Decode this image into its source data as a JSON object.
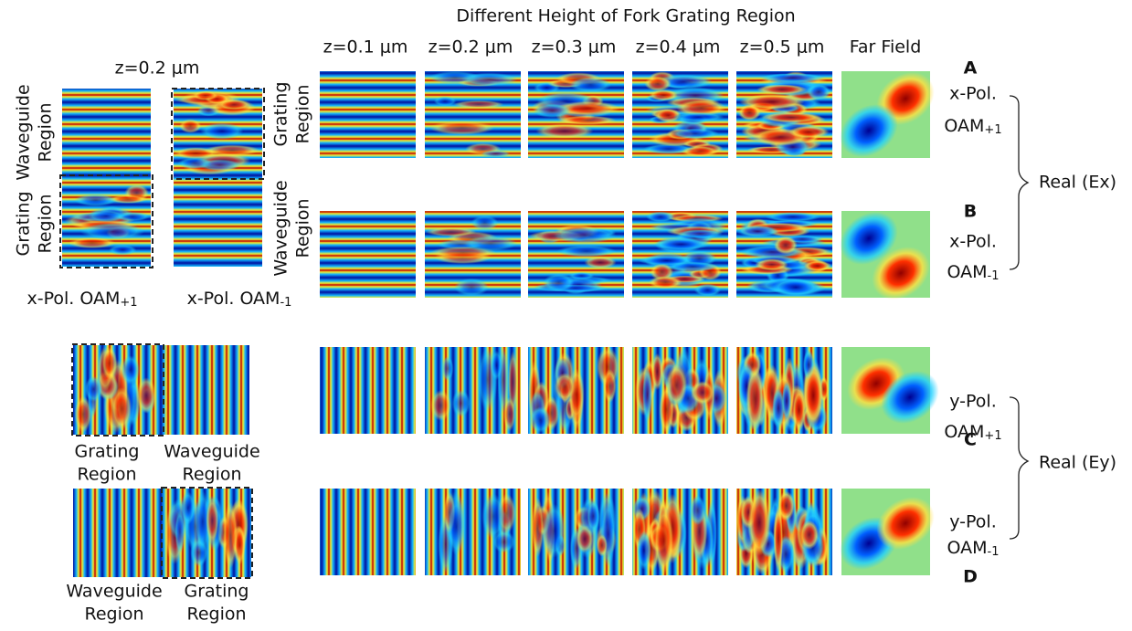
{
  "figure": {
    "title": "Different Height of Fork Grating Region",
    "column_headers": [
      "z=0.1 μm",
      "z=0.2 μm",
      "z=0.3 μm",
      "z=0.4 μm",
      "z=0.5 μm",
      "Far Field"
    ],
    "left_header": "z=0.2 μm",
    "row_labels": {
      "top_waveguide": [
        "Waveguide",
        "Region"
      ],
      "top_grating": [
        "Grating",
        "Region"
      ],
      "grid_grating": [
        "Grating",
        "Region"
      ],
      "grid_waveguide": [
        "Waveguide",
        "Region"
      ]
    },
    "left_captions": [
      {
        "text": "x-Pol. OAM",
        "sub": "+1"
      },
      {
        "text": "x-Pol. OAM",
        "sub": "-1"
      }
    ],
    "bottom_captions": [
      [
        "Grating",
        "Region"
      ],
      [
        "Waveguide",
        "Region"
      ],
      [
        "Waveguide",
        "Region"
      ],
      [
        "Grating",
        "Region"
      ]
    ],
    "panels": [
      {
        "letter": "A",
        "pol": "x-Pol.",
        "oam": "OAM",
        "sub": "+1"
      },
      {
        "letter": "B",
        "pol": "x-Pol.",
        "oam": "OAM",
        "sub": "-1"
      },
      {
        "letter": "C",
        "pol": "y-Pol.",
        "oam": "OAM",
        "sub": "+1"
      },
      {
        "letter": "D",
        "pol": "y-Pol.",
        "oam": "OAM",
        "sub": "-1"
      }
    ],
    "components": [
      "Real (Ex)",
      "Real (Ey)"
    ]
  }
}
